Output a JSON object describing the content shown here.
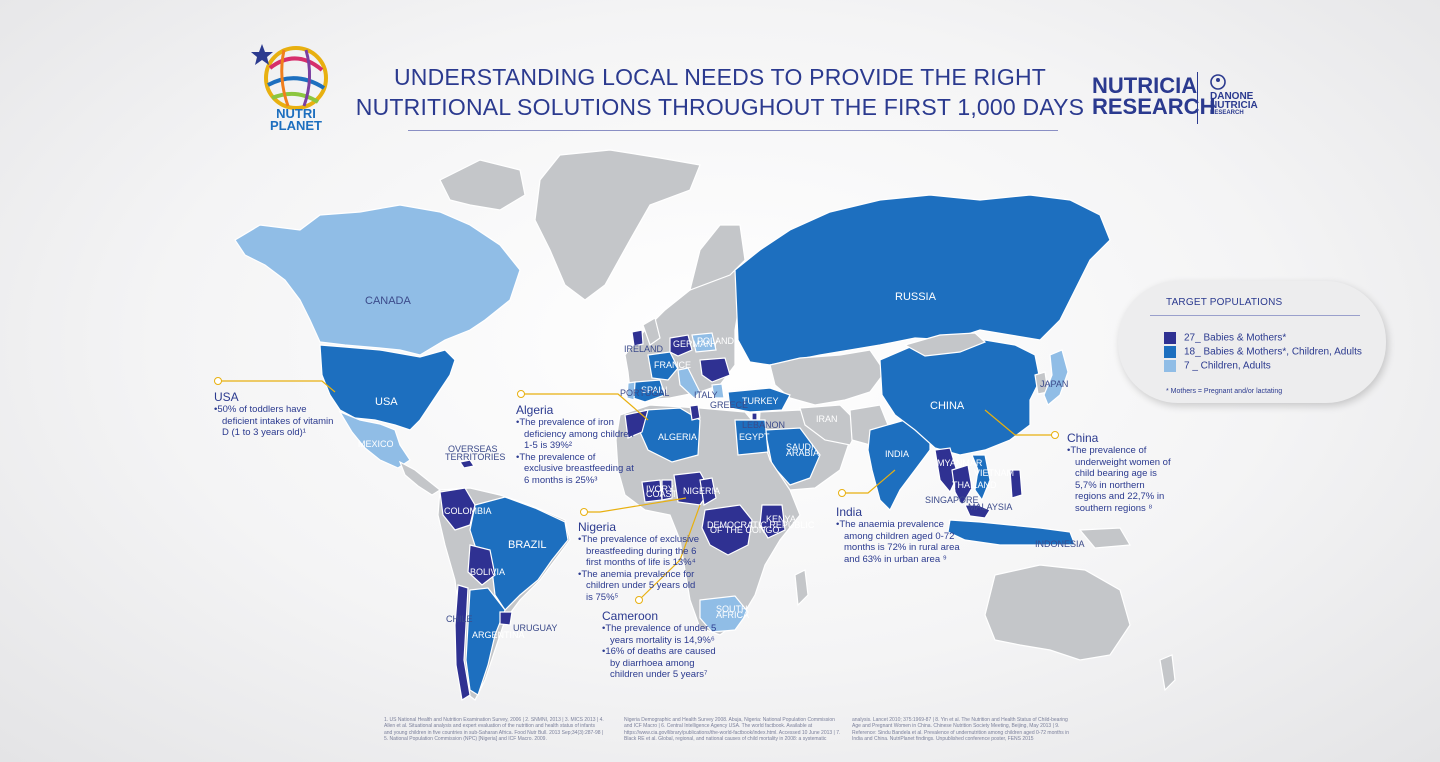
{
  "title_lines": [
    "UNDERSTANDING LOCAL NEEDS TO PROVIDE THE RIGHT",
    "NUTRITIONAL SOLUTIONS THROUGHOUT THE FIRST 1,000 DAYS"
  ],
  "logos": {
    "nutriplanet": [
      "NUTRI",
      "PLANET"
    ],
    "nutricia": [
      "NUTRICIA",
      "RESEARCH"
    ],
    "danone": [
      "DANONE",
      "NUTRICIA",
      "RESEARCH"
    ]
  },
  "colors": {
    "tier1": "#2f3192",
    "tier2": "#1d6fbf",
    "tier3": "#90bde6",
    "land": "#c4c6c9",
    "callout": "#e8b010"
  },
  "legend": {
    "title": "TARGET POPULATIONS",
    "rows": [
      {
        "label": "27_ Babies & Mothers*",
        "tier": "tier1"
      },
      {
        "label": "18_ Babies & Mothers*, Children, Adults",
        "tier": "tier2"
      },
      {
        "label": "7    _ Children, Adults",
        "tier": "tier3"
      }
    ],
    "note": "* Mothers = Pregnant and/or lactating"
  },
  "country_labels": {
    "canada": "CANADA",
    "usa": "USA",
    "mexico": "MEXICO",
    "overseas": [
      "OVERSEAS",
      "TERRITORIES"
    ],
    "colombia": "COLOMBIA",
    "brazil": "BRAZIL",
    "bolivia": "BOLIVIA",
    "chile": "CHILE",
    "argentina": "ARGENTINA",
    "uruguay": "URUGUAY",
    "russia": "RUSSIA",
    "china": "CHINA",
    "india": "INDIA",
    "japan": "JAPAN",
    "turkey": "TURKEY",
    "algeria": "ALGERIA",
    "egypt": "EGYPT",
    "saudi": [
      "SAUDI",
      "ARABIA"
    ],
    "iran": "IRAN",
    "spain": "SPAIN",
    "portugal": "PORTUGAL",
    "italy": "ITALY",
    "greece": "GREECE",
    "lebanon": "LEBANON",
    "ireland": "IRELAND",
    "france": "FRANCE",
    "germany": "GERMANY",
    "poland": "POLAND",
    "nigeria": "NIGERIA",
    "ivory": [
      "IVORY",
      "COAST"
    ],
    "kenya": "KENYA",
    "drc": [
      "DEMOCRATIC REPUBLIC",
      "OF THE CONGO"
    ],
    "south_africa": [
      "SOUTH",
      "AFRICA"
    ],
    "thailand": "THAILAND",
    "vietnam": "VIETNAM",
    "singapore": "SINGAPORE",
    "malaysia": "MALAYSIA",
    "indonesia": "INDONESIA",
    "myanmar": "MYANMAR"
  },
  "callouts": {
    "usa": {
      "title": "USA",
      "bullets": [
        "50% of toddlers have deficient intakes of vitamin D (1 to 3 years old)¹"
      ]
    },
    "algeria": {
      "title": "Algeria",
      "bullets": [
        "The prevalence of iron deficiency among children 1-5 is 39%²",
        "The prevalence of exclusive breastfeeding at 6 months is 25%³"
      ]
    },
    "nigeria": {
      "title": "Nigeria",
      "bullets": [
        "The prevalence of exclusive breastfeeding during the 6 first months of life is 13%⁴",
        "The anemia prevalence for children under 5 years old is 75%⁵"
      ]
    },
    "cameroon": {
      "title": "Cameroon",
      "bullets": [
        "The prevalence of under 5 years mortality is 14,9%⁶",
        "16% of deaths are caused by diarrhoea among children under 5 years⁷"
      ]
    },
    "india": {
      "title": "India",
      "bullets": [
        "The anaemia prevalence among children aged 0-72 months is 72% in rural area and 63% in urban area ⁹"
      ]
    },
    "china": {
      "title": "China",
      "bullets": [
        "The prevalence of underweight women of child bearing age is 5,7% in northern regions and 22,7% in southern regions ⁸"
      ]
    }
  },
  "references": [
    "1. US National Health and Nutrition Examination Survey, 2006 | 2. SNMNI, 2013 | 3. MICS 2013 | 4. Allen et al. Situational analysis and expert evaluation of the nutrition and health status of infants and young children in five countries in sub-Saharan Africa. Food Nutr Bull. 2013 Sep;34(3):287-98 | 5. National Population Commission (NPC) [Nigeria] and ICF Macro. 2009.",
    "Nigeria Demographic and Health Survey 2008. Abuja, Nigeria: National Population Commission and ICF Macro | 6. Central Intelligence Agency USA. The world factbook. Available at https://www.cia.gov/library/publications/the-world-factbook/index.html. Accessed 10 June 2013 | 7. Black RE et al. Global, regional, and national causes of child mortality in 2008: a systematic",
    "analysis. Lancet 2010; 375:1969-87 | 8. Yin et al. The Nutrition and Health Status of Child-bearing Age and Pregnant Women in China. Chinese Nutrition Society Meeting, Beijing, May 2013 | 9. Reference: Sindu Bandela et al. Prevalence of undernutrition among children aged 0-72 months in India and China. NutriPlanet findings. Unpublished conference poster, FENS 2015"
  ]
}
